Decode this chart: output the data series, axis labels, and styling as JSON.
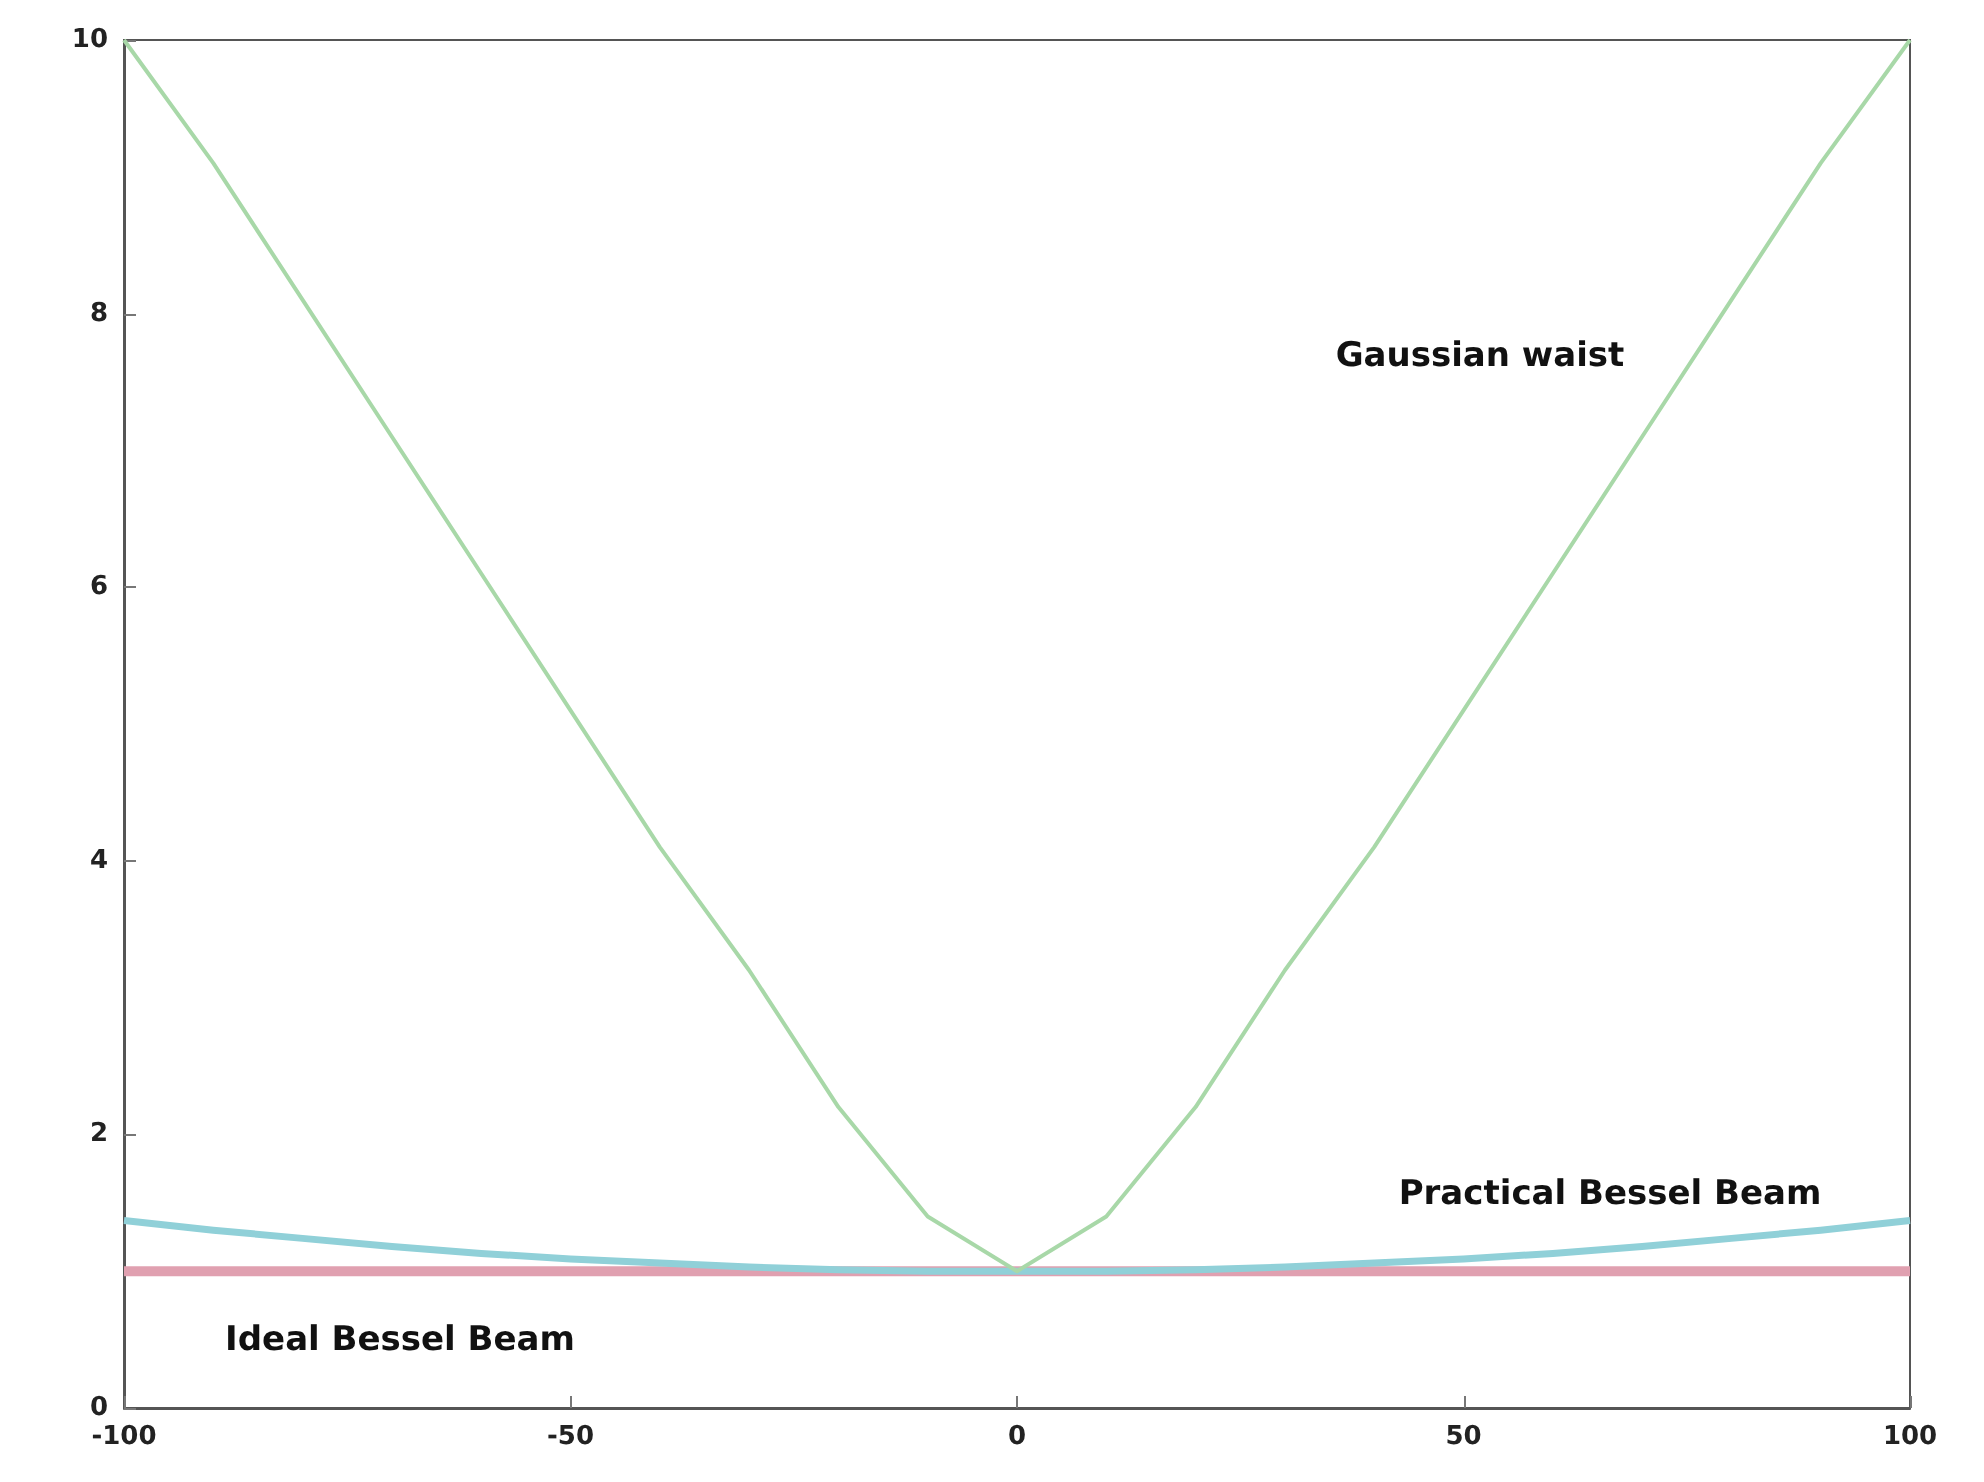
{
  "chart_data": {
    "type": "line",
    "x": [
      -100,
      -90,
      -80,
      -70,
      -60,
      -50,
      -40,
      -30,
      -20,
      -10,
      0,
      10,
      20,
      30,
      40,
      50,
      60,
      70,
      80,
      90,
      100
    ],
    "series": [
      {
        "name": "Gaussian waist",
        "color": "#a8d8a8",
        "values": [
          10,
          9.1,
          8.1,
          7.1,
          6.1,
          5.1,
          4.1,
          3.2,
          2.2,
          1.4,
          1,
          1.4,
          2.2,
          3.2,
          4.1,
          5.1,
          6.1,
          7.1,
          8.1,
          9.1,
          10
        ]
      },
      {
        "name": "Practical Bessel Beam",
        "color": "#90d0d8",
        "values": [
          1.37,
          1.3,
          1.24,
          1.18,
          1.13,
          1.09,
          1.06,
          1.03,
          1.01,
          1,
          1,
          1,
          1.01,
          1.03,
          1.06,
          1.09,
          1.13,
          1.18,
          1.24,
          1.3,
          1.37
        ]
      },
      {
        "name": "Ideal Bessel Beam",
        "color": "#e0a0b0",
        "values": [
          1,
          1,
          1,
          1,
          1,
          1,
          1,
          1,
          1,
          1,
          1,
          1,
          1,
          1,
          1,
          1,
          1,
          1,
          1,
          1,
          1
        ]
      }
    ],
    "xlim": [
      -100,
      100
    ],
    "xticks": [
      -100,
      -50,
      0,
      50,
      100
    ],
    "ylim": [
      0,
      10
    ],
    "yticks": [
      0,
      2,
      4,
      6,
      8,
      10
    ],
    "marker": "none",
    "line_style": "solid"
  }
}
